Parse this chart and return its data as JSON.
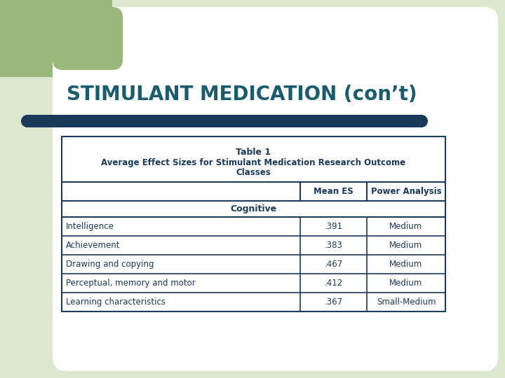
{
  "title": "STIMULANT MEDICATION (con’t)",
  "title_color": "#1a5c6e",
  "bg_color": "#ffffff",
  "slide_bg": "#dde8d0",
  "green_rect_color": "#9ab87a",
  "bar_color": "#1a3a5c",
  "table_title_line1": "Table 1",
  "table_title_line2": "Average Effect Sizes for Stimulant Medication Research Outcome",
  "table_title_line3": "Classes",
  "col_headers": [
    "Mean ES",
    "Power Analysis"
  ],
  "section_header": "Cognitive",
  "rows": [
    [
      "Intelligence",
      ".391",
      "Medium"
    ],
    [
      "Achievement",
      ".383",
      "Medium"
    ],
    [
      "Drawing and copying",
      ".467",
      "Medium"
    ],
    [
      "Perceptual, memory and motor",
      ".412",
      "Medium"
    ],
    [
      "Learning characteristics",
      ".367",
      "Small-Medium"
    ]
  ],
  "table_border_color": "#1a3a5c",
  "header_text_color": "#1a3a5c",
  "cell_text_color": "#1a3a5c",
  "table_bg": "#ffffff",
  "figw": 7.2,
  "figh": 5.4,
  "dpi": 100
}
